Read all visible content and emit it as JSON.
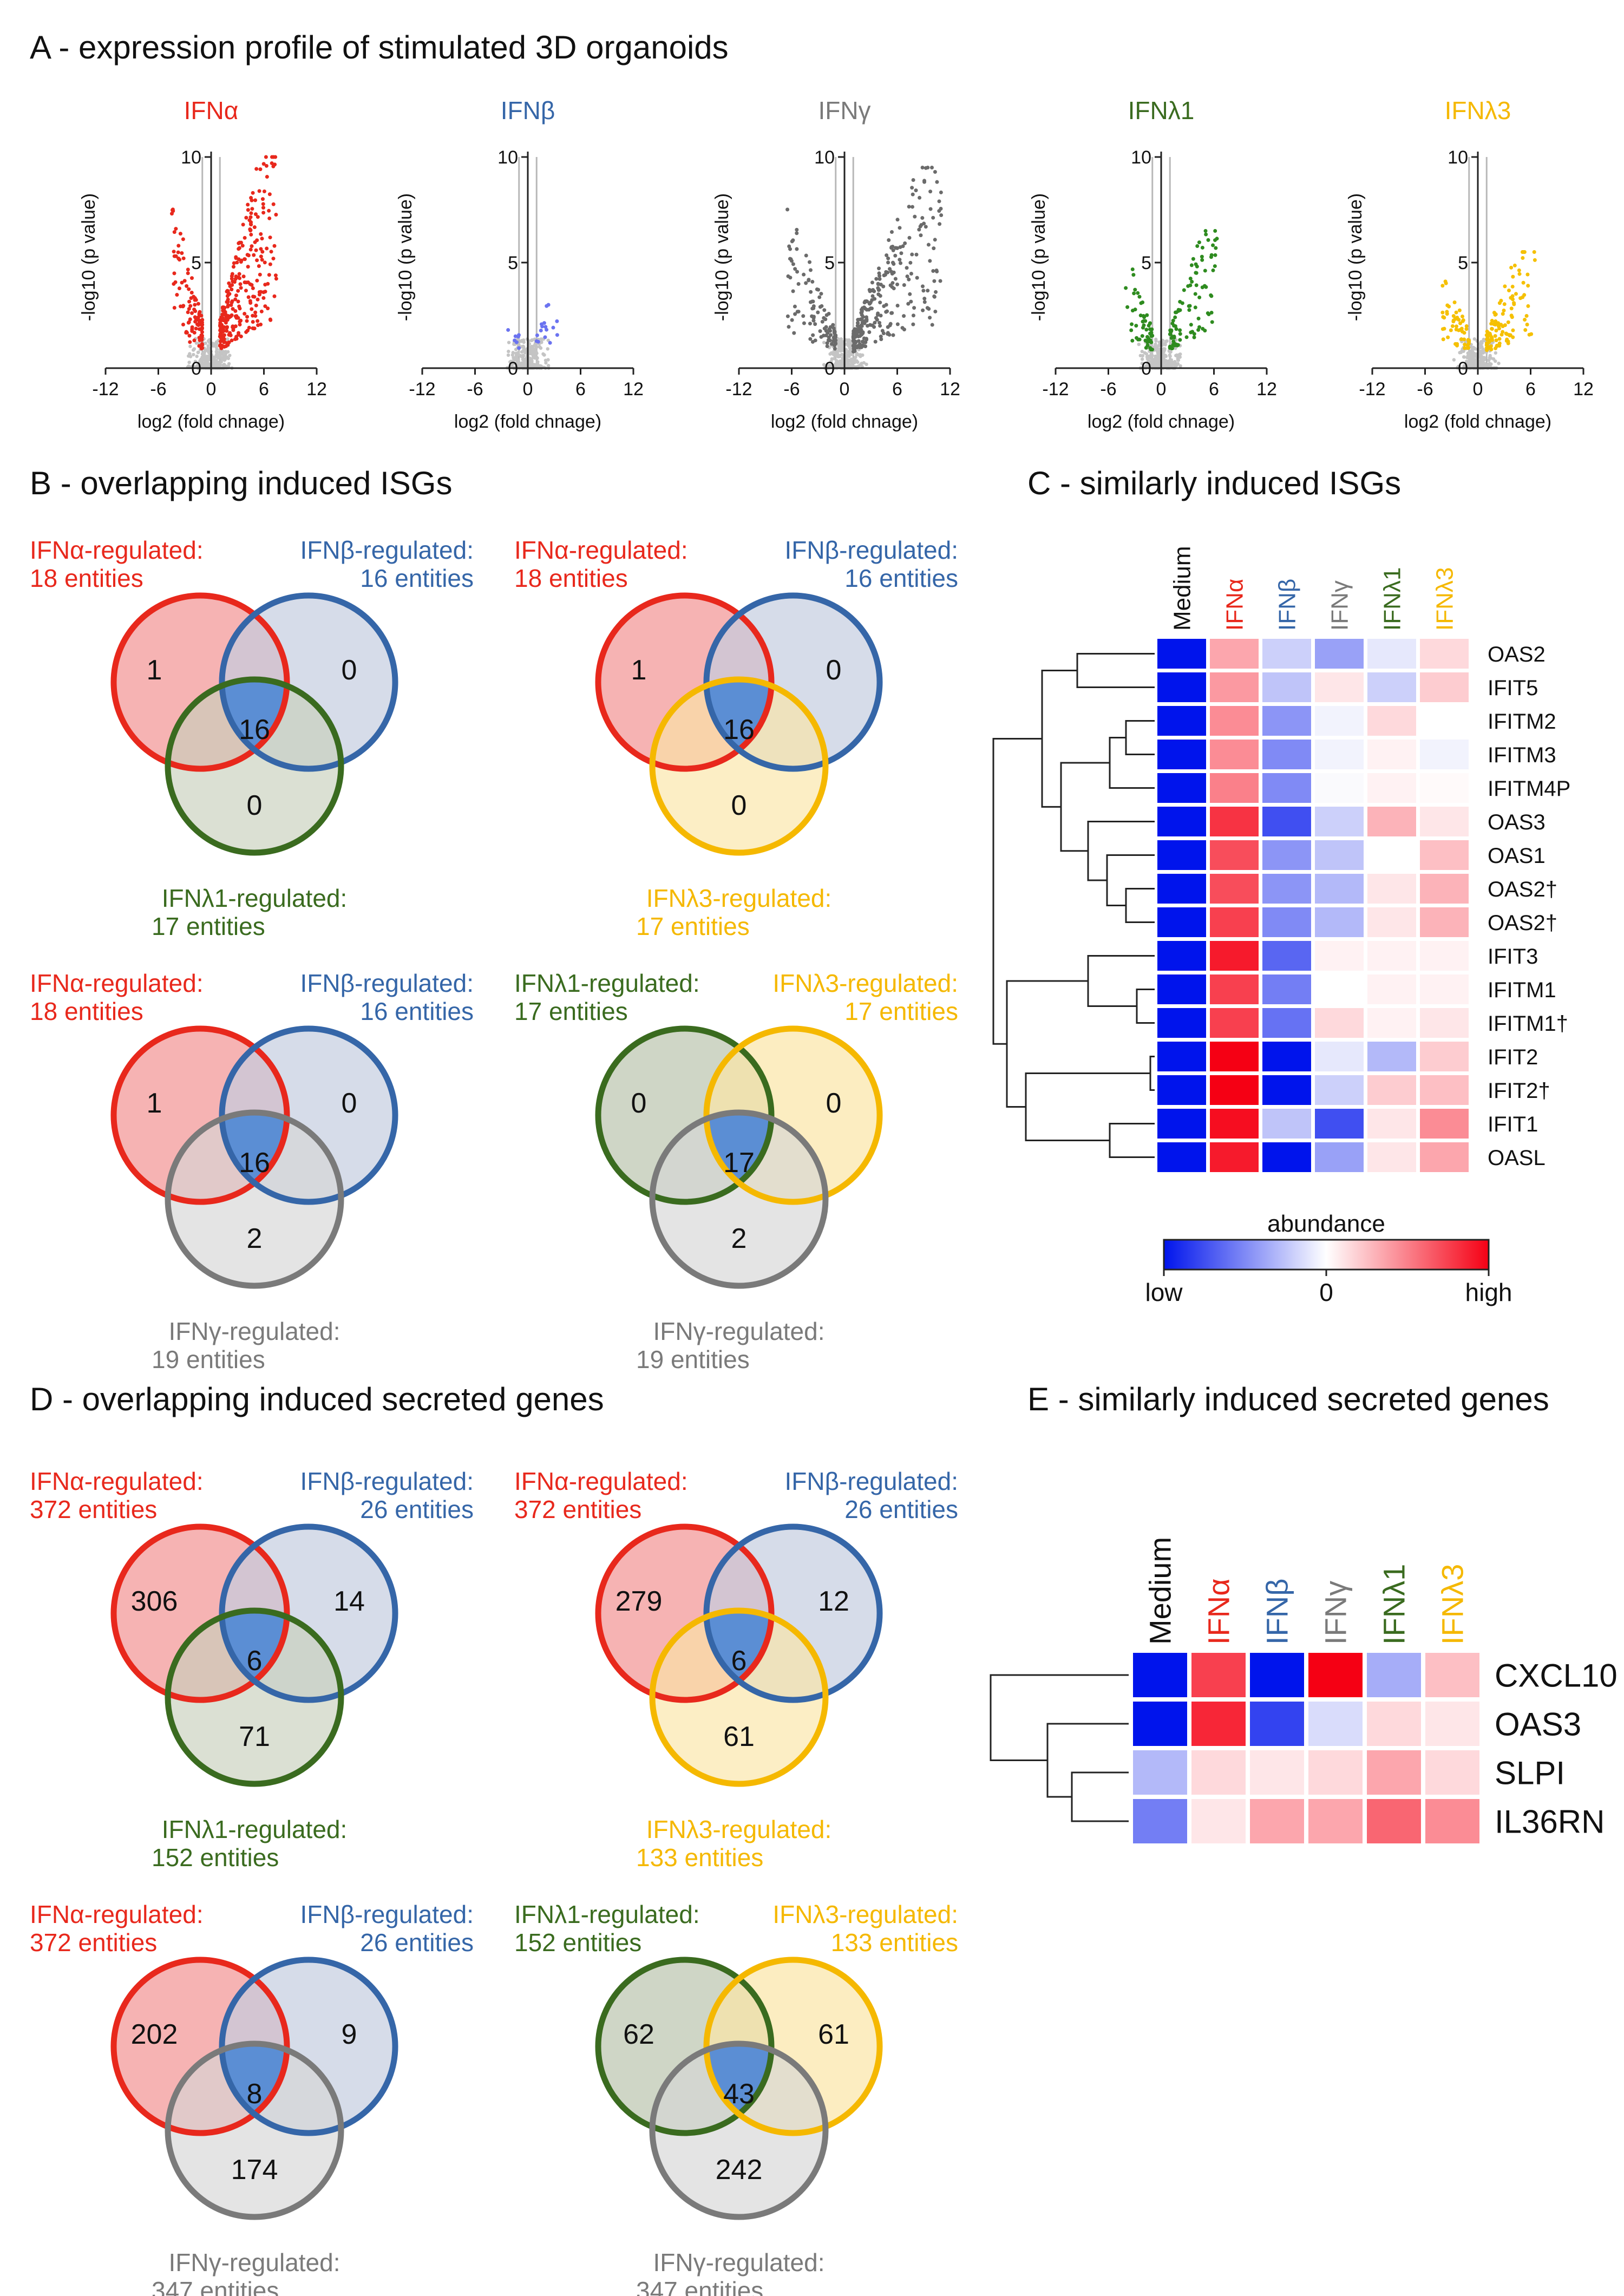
{
  "colors": {
    "alpha": "#e8281c",
    "beta": "#3566a8",
    "gamma": "#7a7a7a",
    "lambda1": "#3a6b1f",
    "lambda3": "#f5b800",
    "alpha_fill": "#f4a6a6",
    "beta_fill": "#c5cde0",
    "gamma_fill": "#d6d6d6",
    "lambda1_fill": "#c7cfbc",
    "lambda3_fill": "#fbe5a6",
    "center_fill": "#5b8ed4"
  },
  "panels": {
    "A": "A - expression profile of stimulated 3D organoids",
    "B": "B - overlapping induced ISGs",
    "C": "C - similarly induced ISGs",
    "D": "D - overlapping induced secreted genes",
    "E": "E - similarly induced secreted genes"
  },
  "chart_data": [
    {
      "type": "scatter",
      "panel": "A",
      "title": "IFNα",
      "xlabel": "log2 (fold chnage)",
      "ylabel": "-log10 (p value)",
      "xlim": [
        -12,
        12
      ],
      "ylim": [
        0,
        10
      ],
      "xticks": [
        "-12",
        "-6",
        "0",
        "6",
        "12"
      ],
      "yticks": [
        "0",
        "5",
        "10"
      ],
      "reference_lines_x": [
        -1,
        1
      ],
      "spread": {
        "x_max": 7.5,
        "y_max": 10,
        "n_significant": 1200
      },
      "color": "#e8281c"
    },
    {
      "type": "scatter",
      "panel": "A",
      "title": "IFNβ",
      "xlabel": "log2 (fold chnage)",
      "ylabel": "-log10 (p value)",
      "xlim": [
        -12,
        12
      ],
      "ylim": [
        0,
        10
      ],
      "xticks": [
        "-12",
        "-6",
        "0",
        "6",
        "12"
      ],
      "yticks": [
        "0",
        "5",
        "10"
      ],
      "reference_lines_x": [
        -1,
        1
      ],
      "spread": {
        "x_max": 3.5,
        "y_max": 3,
        "n_significant": 70
      },
      "color": "#6b73f0"
    },
    {
      "type": "scatter",
      "panel": "A",
      "title": "IFNγ",
      "xlabel": "log2 (fold chnage)",
      "ylabel": "-log10 (p value)",
      "xlim": [
        -12,
        12
      ],
      "ylim": [
        0,
        10
      ],
      "xticks": [
        "-12",
        "-6",
        "0",
        "6",
        "12"
      ],
      "yticks": [
        "0",
        "5",
        "10"
      ],
      "reference_lines_x": [
        -1,
        1
      ],
      "spread": {
        "x_max": 11,
        "y_max": 9.5,
        "n_significant": 1300
      },
      "color": "#6b6b6b"
    },
    {
      "type": "scatter",
      "panel": "A",
      "title": "IFNλ1",
      "xlabel": "log2 (fold chnage)",
      "ylabel": "-log10 (p value)",
      "xlim": [
        -12,
        12
      ],
      "ylim": [
        0,
        10
      ],
      "xticks": [
        "-12",
        "-6",
        "0",
        "6",
        "12"
      ],
      "yticks": [
        "0",
        "5",
        "10"
      ],
      "reference_lines_x": [
        -1,
        1
      ],
      "spread": {
        "x_max": 6.5,
        "y_max": 6.5,
        "n_significant": 450
      },
      "color": "#2e8b1f"
    },
    {
      "type": "scatter",
      "panel": "A",
      "title": "IFNλ3",
      "xlabel": "log2 (fold chnage)",
      "ylabel": "-log10 (p value)",
      "xlim": [
        -12,
        12
      ],
      "ylim": [
        0,
        10
      ],
      "xticks": [
        "-12",
        "-6",
        "0",
        "6",
        "12"
      ],
      "yticks": [
        "0",
        "5",
        "10"
      ],
      "reference_lines_x": [
        -1,
        1
      ],
      "spread": {
        "x_max": 6.5,
        "y_max": 5.5,
        "n_significant": 500
      },
      "color": "#f5c000"
    },
    {
      "type": "heatmap",
      "panel": "C",
      "columns": [
        "Medium",
        "IFNα",
        "IFNβ",
        "IFNγ",
        "IFNλ1",
        "IFNλ3"
      ],
      "rows": [
        "OAS2",
        "IFIT5",
        "IFITM2",
        "IFITM3",
        "IFITM4P",
        "OAS3",
        "OAS1",
        "OAS2†",
        "OAS2†",
        "IFIT3",
        "IFITM1",
        "IFITM1†",
        "IFIT2",
        "IFIT2†",
        "IFIT1",
        "OASL"
      ],
      "values": [
        [
          -1.0,
          0.35,
          -0.2,
          -0.4,
          -0.1,
          0.15
        ],
        [
          -1.0,
          0.4,
          -0.25,
          0.1,
          -0.2,
          0.2
        ],
        [
          -1.0,
          0.45,
          -0.45,
          -0.05,
          0.15,
          0.0
        ],
        [
          -1.0,
          0.45,
          -0.5,
          -0.05,
          0.05,
          -0.05
        ],
        [
          -1.0,
          0.5,
          -0.5,
          -0.02,
          0.05,
          0.02
        ],
        [
          -1.0,
          0.8,
          -0.75,
          -0.2,
          0.3,
          0.1
        ],
        [
          -1.0,
          0.7,
          -0.45,
          -0.25,
          0.0,
          0.25
        ],
        [
          -1.0,
          0.7,
          -0.45,
          -0.3,
          0.1,
          0.3
        ],
        [
          -1.0,
          0.75,
          -0.5,
          -0.3,
          0.1,
          0.3
        ],
        [
          -1.0,
          0.9,
          -0.65,
          0.05,
          0.05,
          0.05
        ],
        [
          -1.0,
          0.75,
          -0.55,
          0.0,
          0.05,
          0.05
        ],
        [
          -1.0,
          0.75,
          -0.6,
          0.15,
          0.05,
          0.1
        ],
        [
          -1.0,
          1.0,
          -1.0,
          -0.1,
          -0.3,
          0.2
        ],
        [
          -1.0,
          1.0,
          -1.0,
          -0.2,
          0.2,
          0.25
        ],
        [
          -1.0,
          0.95,
          -0.25,
          -0.75,
          0.1,
          0.45
        ],
        [
          -1.0,
          0.9,
          -1.0,
          -0.4,
          0.1,
          0.35
        ]
      ],
      "legend_title": "abundance",
      "legend_labels": [
        "low",
        "0",
        "high"
      ]
    },
    {
      "type": "heatmap",
      "panel": "E",
      "columns": [
        "Medium",
        "IFNα",
        "IFNβ",
        "IFNγ",
        "IFNλ1",
        "IFNλ3"
      ],
      "rows": [
        "CXCL10",
        "OAS3",
        "SLPI",
        "IL36RN"
      ],
      "values": [
        [
          -1.0,
          0.75,
          -1.0,
          1.0,
          -0.35,
          0.25
        ],
        [
          -1.0,
          0.85,
          -0.8,
          -0.15,
          0.15,
          0.1
        ],
        [
          -0.3,
          0.15,
          0.1,
          0.15,
          0.35,
          0.15
        ],
        [
          -0.55,
          0.1,
          0.35,
          0.35,
          0.6,
          0.45
        ]
      ]
    }
  ],
  "venn_B": [
    {
      "label_a": "IFNα-regulated:",
      "count_a": "18 entities",
      "label_b": "IFNβ-regulated:",
      "count_b": "16 entities",
      "label_c": "IFNλ1-regulated:",
      "count_c": "17 entities",
      "n_a": "1",
      "n_b": "0",
      "n_center": "16",
      "n_c": "0"
    },
    {
      "label_a": "IFNα-regulated:",
      "count_a": "18 entities",
      "label_b": "IFNβ-regulated:",
      "count_b": "16 entities",
      "label_c": "IFNλ3-regulated:",
      "count_c": "17 entities",
      "n_a": "1",
      "n_b": "0",
      "n_center": "16",
      "n_c": "0"
    },
    {
      "label_a": "IFNα-regulated:",
      "count_a": "18 entities",
      "label_b": "IFNβ-regulated:",
      "count_b": "16 entities",
      "label_c": "IFNγ-regulated:",
      "count_c": "19 entities",
      "n_a": "1",
      "n_b": "0",
      "n_center": "16",
      "n_c": "2"
    },
    {
      "label_a": "IFNλ1-regulated:",
      "count_a": "17 entities",
      "label_b": "IFNλ3-regulated:",
      "count_b": "17 entities",
      "label_c": "IFNγ-regulated:",
      "count_c": "19 entities",
      "n_a": "0",
      "n_b": "0",
      "n_center": "17",
      "n_c": "2"
    }
  ],
  "venn_D": [
    {
      "label_a": "IFNα-regulated:",
      "count_a": "372 entities",
      "label_b": "IFNβ-regulated:",
      "count_b": "26 entities",
      "label_c": "IFNλ1-regulated:",
      "count_c": "152 entities",
      "n_a": "306",
      "n_b": "14",
      "n_center": "6",
      "n_c": "71"
    },
    {
      "label_a": "IFNα-regulated:",
      "count_a": "372 entities",
      "label_b": "IFNβ-regulated:",
      "count_b": "26 entities",
      "label_c": "IFNλ3-regulated:",
      "count_c": "133 entities",
      "n_a": "279",
      "n_b": "12",
      "n_center": "6",
      "n_c": "61"
    },
    {
      "label_a": "IFNα-regulated:",
      "count_a": "372 entities",
      "label_b": "IFNβ-regulated:",
      "count_b": "26 entities",
      "label_c": "IFNγ-regulated:",
      "count_c": "347 entities",
      "n_a": "202",
      "n_b": "9",
      "n_center": "8",
      "n_c": "174"
    },
    {
      "label_a": "IFNλ1-regulated:",
      "count_a": "152 entities",
      "label_b": "IFNλ3-regulated:",
      "count_b": "133 entities",
      "label_c": "IFNγ-regulated:",
      "count_c": "347 entities",
      "n_a": "62",
      "n_b": "61",
      "n_center": "43",
      "n_c": "242"
    }
  ]
}
